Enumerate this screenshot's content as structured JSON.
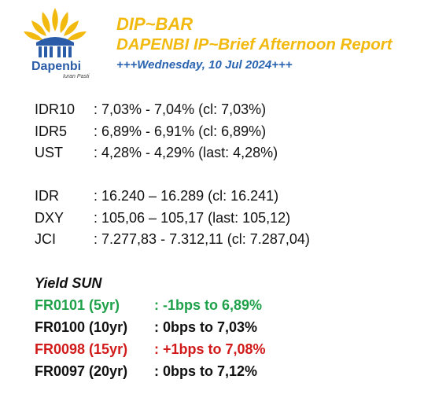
{
  "logo": {
    "name": "Dapenbi",
    "tagline": "Iuran Pasti",
    "colors": {
      "sun": "#f2b90f",
      "pillar": "#2a5ca8"
    }
  },
  "header": {
    "title": "DIP~BAR",
    "subtitle": "DAPENBI IP~Brief Afternoon Report",
    "date": "+++Wednesday, 10 Jul 2024+++"
  },
  "rates": [
    {
      "label": "IDR10",
      "value": ": 7,03% - 7,04% (cl: 7,03%)"
    },
    {
      "label": "IDR5",
      "value": ": 6,89% - 6,91% (cl: 6,89%)"
    },
    {
      "label": "UST",
      "value": ": 4,28% - 4,29% (last: 4,28%)"
    }
  ],
  "markets": [
    {
      "label": "IDR",
      "value": ": 16.240 – 16.289 (cl: 16.241)"
    },
    {
      "label": "DXY",
      "value": ": 105,06 – 105,17 (last: 105,12)"
    },
    {
      "label": "JCI",
      "value": ": 7.277,83 - 7.312,11 (cl: 7.287,04)"
    }
  ],
  "yield_sun": {
    "title": "Yield SUN",
    "items": [
      {
        "series": "FR0101 (5yr)",
        "change": ": -1bps to 6,89%",
        "color": "#1fa14a"
      },
      {
        "series": "FR0100 (10yr)",
        "change": ": 0bps to 7,03%",
        "color": "#111111"
      },
      {
        "series": "FR0098 (15yr)",
        "change": ": +1bps to 7,08%",
        "color": "#d11a1a"
      },
      {
        "series": "FR0097 (20yr)",
        "change": ": 0bps to 7,12%",
        "color": "#111111"
      }
    ]
  }
}
